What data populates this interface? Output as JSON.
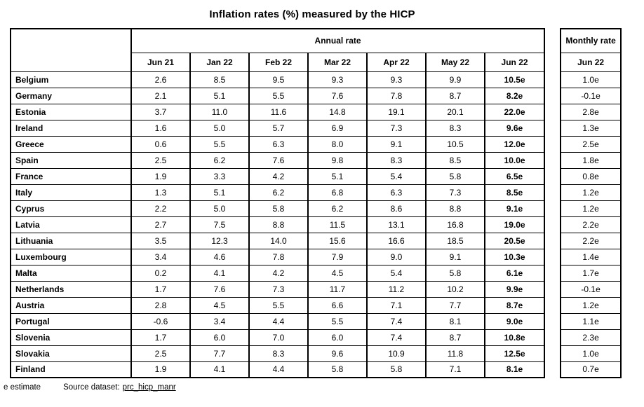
{
  "title": "Inflation rates (%) measured by the HICP",
  "table": {
    "annual_header": "Annual rate",
    "monthly_header": "Monthly rate",
    "annual_columns": [
      "Jun 21",
      "Jan 22",
      "Feb 22",
      "Mar 22",
      "Apr 22",
      "May 22",
      "Jun 22"
    ],
    "monthly_column": "Jun 22",
    "rows": [
      {
        "country": "Belgium",
        "annual": [
          "2.6",
          "8.5",
          "9.5",
          "9.3",
          "9.3",
          "9.9",
          "10.5e"
        ],
        "monthly": "1.0e"
      },
      {
        "country": "Germany",
        "annual": [
          "2.1",
          "5.1",
          "5.5",
          "7.6",
          "7.8",
          "8.7",
          "8.2e"
        ],
        "monthly": "-0.1e"
      },
      {
        "country": "Estonia",
        "annual": [
          "3.7",
          "11.0",
          "11.6",
          "14.8",
          "19.1",
          "20.1",
          "22.0e"
        ],
        "monthly": "2.8e"
      },
      {
        "country": "Ireland",
        "annual": [
          "1.6",
          "5.0",
          "5.7",
          "6.9",
          "7.3",
          "8.3",
          "9.6e"
        ],
        "monthly": "1.3e"
      },
      {
        "country": "Greece",
        "annual": [
          "0.6",
          "5.5",
          "6.3",
          "8.0",
          "9.1",
          "10.5",
          "12.0e"
        ],
        "monthly": "2.5e"
      },
      {
        "country": "Spain",
        "annual": [
          "2.5",
          "6.2",
          "7.6",
          "9.8",
          "8.3",
          "8.5",
          "10.0e"
        ],
        "monthly": "1.8e"
      },
      {
        "country": "France",
        "annual": [
          "1.9",
          "3.3",
          "4.2",
          "5.1",
          "5.4",
          "5.8",
          "6.5e"
        ],
        "monthly": "0.8e"
      },
      {
        "country": "Italy",
        "annual": [
          "1.3",
          "5.1",
          "6.2",
          "6.8",
          "6.3",
          "7.3",
          "8.5e"
        ],
        "monthly": "1.2e"
      },
      {
        "country": "Cyprus",
        "annual": [
          "2.2",
          "5.0",
          "5.8",
          "6.2",
          "8.6",
          "8.8",
          "9.1e"
        ],
        "monthly": "1.2e"
      },
      {
        "country": "Latvia",
        "annual": [
          "2.7",
          "7.5",
          "8.8",
          "11.5",
          "13.1",
          "16.8",
          "19.0e"
        ],
        "monthly": "2.2e"
      },
      {
        "country": "Lithuania",
        "annual": [
          "3.5",
          "12.3",
          "14.0",
          "15.6",
          "16.6",
          "18.5",
          "20.5e"
        ],
        "monthly": "2.2e"
      },
      {
        "country": "Luxembourg",
        "annual": [
          "3.4",
          "4.6",
          "7.8",
          "7.9",
          "9.0",
          "9.1",
          "10.3e"
        ],
        "monthly": "1.4e"
      },
      {
        "country": "Malta",
        "annual": [
          "0.2",
          "4.1",
          "4.2",
          "4.5",
          "5.4",
          "5.8",
          "6.1e"
        ],
        "monthly": "1.7e"
      },
      {
        "country": "Netherlands",
        "annual": [
          "1.7",
          "7.6",
          "7.3",
          "11.7",
          "11.2",
          "10.2",
          "9.9e"
        ],
        "monthly": "-0.1e"
      },
      {
        "country": "Austria",
        "annual": [
          "2.8",
          "4.5",
          "5.5",
          "6.6",
          "7.1",
          "7.7",
          "8.7e"
        ],
        "monthly": "1.2e"
      },
      {
        "country": "Portugal",
        "annual": [
          "-0.6",
          "3.4",
          "4.4",
          "5.5",
          "7.4",
          "8.1",
          "9.0e"
        ],
        "monthly": "1.1e"
      },
      {
        "country": "Slovenia",
        "annual": [
          "1.7",
          "6.0",
          "7.0",
          "6.0",
          "7.4",
          "8.7",
          "10.8e"
        ],
        "monthly": "2.3e"
      },
      {
        "country": "Slovakia",
        "annual": [
          "2.5",
          "7.7",
          "8.3",
          "9.6",
          "10.9",
          "11.8",
          "12.5e"
        ],
        "monthly": "1.0e"
      },
      {
        "country": "Finland",
        "annual": [
          "1.9",
          "4.1",
          "4.4",
          "5.8",
          "5.8",
          "7.1",
          "8.1e"
        ],
        "monthly": "0.7e"
      }
    ]
  },
  "footer": {
    "note": "e estimate",
    "source_label": "Source dataset:",
    "source_link": "prc_hicp_manr"
  }
}
